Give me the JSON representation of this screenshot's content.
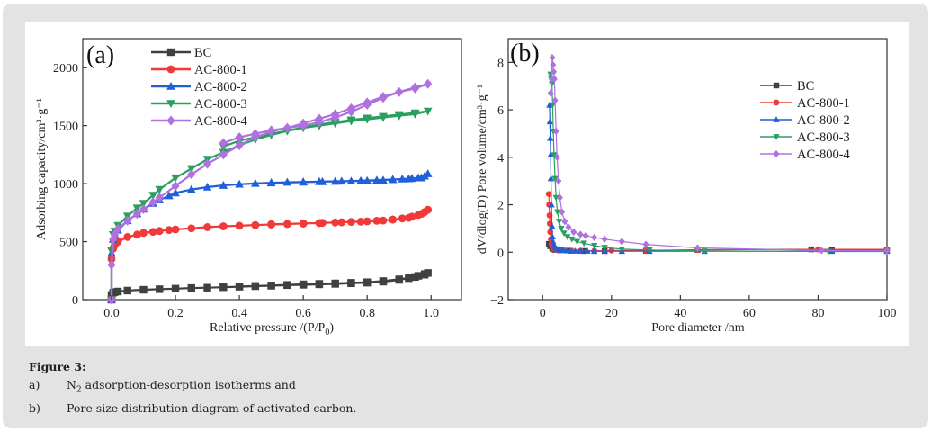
{
  "figure": {
    "caption_title": "Figure 3:",
    "caption_items": [
      {
        "label": "a)",
        "text_pre": "N",
        "text_sub": "2",
        "text_post": " adsorption-desorption isotherms and"
      },
      {
        "label": "b)",
        "text_pre": "Pore size distribution diagram of activated carbon.",
        "text_sub": "",
        "text_post": ""
      }
    ]
  },
  "chart_data": [
    {
      "type": "line",
      "panel_label": "(a)",
      "xlabel": "Relative pressure /(P/P",
      "xlabel_sub": "0",
      "xlabel_end": ")",
      "ylabel": "Adsorbing capacity/cm³·g⁻¹",
      "xlim": [
        -0.09,
        1.095
      ],
      "ylim": [
        0,
        2250
      ],
      "xticks": [
        0.0,
        0.2,
        0.4,
        0.6,
        0.8,
        1.0
      ],
      "xtick_labels": [
        "0.0",
        "0.2",
        "0.4",
        "0.6",
        "0.8",
        "1.0"
      ],
      "yticks": [
        0,
        500,
        1000,
        1500,
        2000
      ],
      "ytick_labels": [
        "0",
        "500",
        "1000",
        "1500",
        "2000"
      ],
      "grid": false,
      "legend_position": "top-left",
      "series": [
        {
          "name": "BC",
          "color": "#404040",
          "marker": "square",
          "x": [
            0.0,
            0.0,
            0.005,
            0.01,
            0.02,
            0.05,
            0.1,
            0.15,
            0.2,
            0.25,
            0.3,
            0.35,
            0.4,
            0.45,
            0.5,
            0.55,
            0.6,
            0.65,
            0.7,
            0.75,
            0.8,
            0.85,
            0.9,
            0.93,
            0.96,
            0.98,
            0.99,
            0.98,
            0.95,
            0.9,
            0.85,
            0.8,
            0.75,
            0.7,
            0.65,
            0.6,
            0.55,
            0.5,
            0.45,
            0.4
          ],
          "y": [
            0,
            40,
            60,
            65,
            70,
            78,
            85,
            90,
            95,
            100,
            103,
            107,
            112,
            116,
            120,
            125,
            128,
            132,
            136,
            141,
            146,
            155,
            170,
            185,
            205,
            220,
            230,
            215,
            195,
            175,
            160,
            150,
            145,
            140,
            136,
            132,
            127,
            122,
            118,
            113
          ]
        },
        {
          "name": "AC-800-1",
          "color": "#f03a3a",
          "marker": "circle",
          "x": [
            0.0,
            0.0,
            0.005,
            0.01,
            0.02,
            0.05,
            0.08,
            0.1,
            0.13,
            0.15,
            0.18,
            0.2,
            0.25,
            0.3,
            0.35,
            0.4,
            0.45,
            0.5,
            0.55,
            0.6,
            0.65,
            0.7,
            0.75,
            0.8,
            0.85,
            0.88,
            0.91,
            0.94,
            0.96,
            0.98,
            0.99,
            0.97,
            0.93,
            0.88,
            0.83,
            0.78,
            0.72,
            0.66,
            0.6,
            0.5
          ],
          "y": [
            0,
            350,
            440,
            470,
            500,
            540,
            560,
            575,
            585,
            592,
            600,
            605,
            615,
            625,
            632,
            637,
            643,
            648,
            652,
            656,
            660,
            665,
            670,
            675,
            682,
            690,
            700,
            715,
            730,
            755,
            775,
            740,
            705,
            690,
            680,
            672,
            667,
            662,
            657,
            650
          ]
        },
        {
          "name": "AC-800-2",
          "color": "#1f5fd8",
          "marker": "triangle-up",
          "x": [
            0.0,
            0.0,
            0.005,
            0.01,
            0.02,
            0.05,
            0.08,
            0.1,
            0.13,
            0.15,
            0.18,
            0.2,
            0.25,
            0.3,
            0.35,
            0.4,
            0.45,
            0.5,
            0.55,
            0.6,
            0.65,
            0.7,
            0.75,
            0.8,
            0.85,
            0.88,
            0.91,
            0.94,
            0.96,
            0.98,
            0.99,
            0.97,
            0.93,
            0.88,
            0.83,
            0.78,
            0.72,
            0.66,
            0.6,
            0.5
          ],
          "y": [
            0,
            400,
            520,
            560,
            600,
            680,
            740,
            780,
            830,
            860,
            895,
            920,
            950,
            970,
            985,
            995,
            1002,
            1008,
            1012,
            1015,
            1018,
            1020,
            1022,
            1025,
            1030,
            1035,
            1040,
            1045,
            1050,
            1065,
            1085,
            1050,
            1042,
            1036,
            1030,
            1025,
            1021,
            1017,
            1013,
            1006
          ]
        },
        {
          "name": "AC-800-3",
          "color": "#2a9f5f",
          "marker": "triangle-down",
          "x": [
            0.0,
            0.0,
            0.005,
            0.01,
            0.02,
            0.05,
            0.08,
            0.1,
            0.13,
            0.15,
            0.2,
            0.25,
            0.3,
            0.35,
            0.4,
            0.45,
            0.5,
            0.55,
            0.6,
            0.65,
            0.7,
            0.75,
            0.8,
            0.85,
            0.9,
            0.95,
            0.99,
            0.95,
            0.9,
            0.85,
            0.8,
            0.75,
            0.7,
            0.65,
            0.6,
            0.55,
            0.5,
            0.45,
            0.4,
            0.35
          ],
          "y": [
            0,
            420,
            560,
            590,
            640,
            720,
            790,
            830,
            900,
            950,
            1050,
            1130,
            1210,
            1270,
            1330,
            1380,
            1420,
            1455,
            1485,
            1510,
            1530,
            1550,
            1565,
            1580,
            1595,
            1610,
            1625,
            1600,
            1585,
            1570,
            1555,
            1540,
            1520,
            1500,
            1480,
            1455,
            1430,
            1400,
            1370,
            1320
          ]
        },
        {
          "name": "AC-800-4",
          "color": "#b071e0",
          "marker": "diamond",
          "x": [
            0.0,
            0.0,
            0.005,
            0.01,
            0.02,
            0.05,
            0.08,
            0.1,
            0.13,
            0.15,
            0.2,
            0.25,
            0.3,
            0.35,
            0.4,
            0.45,
            0.5,
            0.55,
            0.6,
            0.65,
            0.7,
            0.75,
            0.8,
            0.85,
            0.9,
            0.95,
            0.99,
            0.95,
            0.9,
            0.85,
            0.8,
            0.75,
            0.7,
            0.65,
            0.6,
            0.55,
            0.5,
            0.45,
            0.4,
            0.35
          ],
          "y": [
            0,
            300,
            520,
            560,
            610,
            680,
            740,
            780,
            840,
            880,
            980,
            1080,
            1170,
            1250,
            1330,
            1400,
            1450,
            1480,
            1520,
            1560,
            1600,
            1650,
            1700,
            1750,
            1790,
            1830,
            1860,
            1820,
            1790,
            1740,
            1680,
            1620,
            1570,
            1530,
            1500,
            1480,
            1460,
            1430,
            1400,
            1350
          ]
        }
      ]
    },
    {
      "type": "line",
      "panel_label": "(b)",
      "xlabel": "Pore diameter /nm",
      "ylabel": "dV/dlog(D) Pore volume/cm³·g⁻¹",
      "xlim": [
        -10,
        100
      ],
      "ylim": [
        -2,
        9
      ],
      "xticks": [
        0,
        20,
        40,
        60,
        80,
        100
      ],
      "xtick_labels": [
        "0",
        "20",
        "40",
        "60",
        "80",
        "100"
      ],
      "yticks": [
        -2,
        0,
        2,
        4,
        6,
        8
      ],
      "ytick_labels": [
        "−2",
        "0",
        "2",
        "4",
        "6",
        "8"
      ],
      "grid": false,
      "legend_position": "top-right",
      "series": [
        {
          "name": "BC",
          "color": "#404040",
          "marker": "square",
          "x": [
            1.8,
            2.2,
            2.8,
            3.5,
            5,
            8,
            12,
            18,
            30,
            45,
            78,
            84,
            100
          ],
          "y": [
            0.35,
            0.25,
            0.15,
            0.1,
            0.08,
            0.06,
            0.05,
            0.05,
            0.06,
            0.1,
            0.12,
            0.1,
            0.1
          ]
        },
        {
          "name": "AC-800-1",
          "color": "#f03a3a",
          "marker": "circle",
          "x": [
            1.8,
            1.9,
            2.0,
            2.1,
            2.2,
            2.4,
            2.6,
            2.9,
            3.3,
            4,
            5,
            6.5,
            8.5,
            11,
            15,
            20,
            30,
            45,
            80,
            100
          ],
          "y": [
            2.45,
            2.0,
            1.55,
            1.2,
            0.85,
            0.55,
            0.35,
            0.22,
            0.15,
            0.1,
            0.08,
            0.07,
            0.06,
            0.06,
            0.06,
            0.07,
            0.08,
            0.1,
            0.12,
            0.12
          ]
        },
        {
          "name": "AC-800-2",
          "color": "#1f5fd8",
          "marker": "triangle-up",
          "x": [
            2.0,
            2.1,
            2.2,
            2.3,
            2.4,
            2.55,
            2.7,
            2.85,
            3.0,
            3.3,
            3.7,
            4.2,
            5,
            6,
            7,
            8,
            9.5,
            11,
            13,
            15,
            18,
            23,
            31,
            47,
            84,
            100
          ],
          "y": [
            6.2,
            5.5,
            4.8,
            4.1,
            3.1,
            2.0,
            1.1,
            0.65,
            0.45,
            0.3,
            0.2,
            0.13,
            0.1,
            0.08,
            0.07,
            0.06,
            0.05,
            0.05,
            0.05,
            0.04,
            0.04,
            0.04,
            0.04,
            0.04,
            0.04,
            0.04
          ]
        },
        {
          "name": "AC-800-3",
          "color": "#2a9f5f",
          "marker": "triangle-down",
          "x": [
            2.3,
            2.5,
            2.7,
            2.9,
            3.1,
            3.3,
            3.6,
            3.9,
            4.3,
            4.8,
            5.4,
            6.2,
            7.2,
            8.5,
            10,
            12,
            15,
            18,
            23,
            31,
            47,
            83,
            100
          ],
          "y": [
            7.5,
            7.3,
            7.1,
            6.2,
            5.1,
            4.1,
            3.1,
            2.3,
            1.7,
            1.3,
            1.0,
            0.8,
            0.65,
            0.55,
            0.45,
            0.38,
            0.28,
            0.2,
            0.13,
            0.09,
            0.05,
            0.03,
            0.03
          ]
        },
        {
          "name": "AC-800-4",
          "color": "#b071e0",
          "marker": "diamond",
          "x": [
            2.3,
            2.6,
            2.8,
            3.0,
            3.2,
            3.4,
            3.6,
            3.9,
            4.2,
            4.6,
            5.0,
            5.6,
            6.4,
            7.5,
            9,
            11,
            12.5,
            15,
            18,
            23,
            30,
            45,
            81,
            100
          ],
          "y": [
            6.7,
            7.3,
            8.2,
            7.9,
            7.6,
            7.3,
            6.4,
            5.1,
            4.0,
            3.0,
            2.3,
            1.7,
            1.3,
            1.05,
            0.85,
            0.75,
            0.7,
            0.62,
            0.55,
            0.45,
            0.33,
            0.18,
            0.07,
            0.06
          ]
        }
      ]
    }
  ]
}
